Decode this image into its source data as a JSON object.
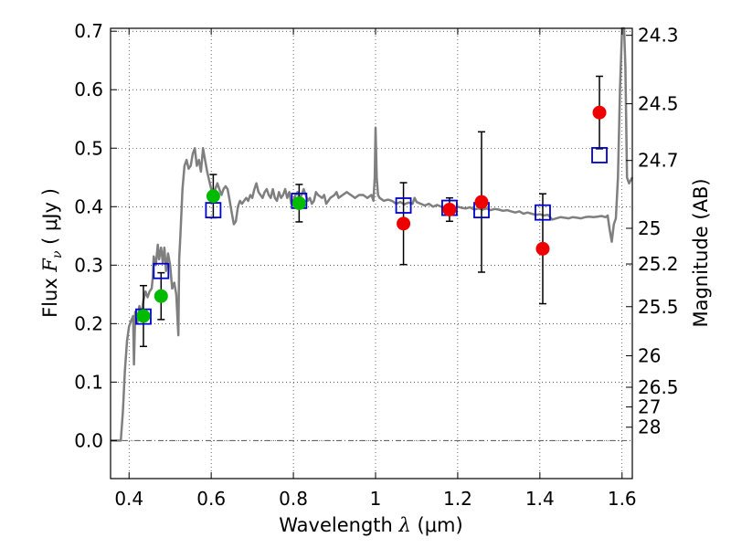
{
  "chart_data": {
    "type": "scatter",
    "xlabel_prefix": "Wavelength ",
    "xlabel_symbol": "λ",
    "xlabel_unit": " (μm)",
    "ylabel_prefix": "Flux ",
    "ylabel_symbol": "F",
    "ylabel_subscript": "ν",
    "ylabel_unit": " ( μJy )",
    "y2label": "Magnitude (AB)",
    "xlim": [
      0.355,
      1.625
    ],
    "ylim": [
      -0.065,
      0.705
    ],
    "xticks": [
      0.4,
      0.6,
      0.8,
      1.0,
      1.2,
      1.4,
      1.6
    ],
    "xtick_labels": [
      "0.4",
      "0.6",
      "0.8",
      "1",
      "1.2",
      "1.4",
      "1.6"
    ],
    "yticks": [
      0.0,
      0.1,
      0.2,
      0.3,
      0.4,
      0.5,
      0.6,
      0.7
    ],
    "ytick_labels": [
      "0.0",
      "0.1",
      "0.2",
      "0.3",
      "0.4",
      "0.5",
      "0.6",
      "0.7"
    ],
    "mag_ticks": [
      {
        "label": "24.3",
        "flux": 0.693
      },
      {
        "label": "24.5",
        "flux": 0.576
      },
      {
        "label": "24.7",
        "flux": 0.479
      },
      {
        "label": "25",
        "flux": 0.363
      },
      {
        "label": "25.2",
        "flux": 0.302
      },
      {
        "label": "25.5",
        "flux": 0.229
      },
      {
        "label": "26",
        "flux": 0.145
      },
      {
        "label": "26.5",
        "flux": 0.0912
      },
      {
        "label": "27",
        "flux": 0.0575
      },
      {
        "label": "28",
        "flux": 0.0229
      }
    ],
    "grid": true,
    "colors": {
      "template": "#7f7f7f",
      "green": "#00bb00",
      "red": "#ee0000",
      "model_box": "#0000cc",
      "errorbar": "#000000",
      "zero_line": "#555555"
    },
    "series": [
      {
        "name": "template_sed",
        "kind": "line",
        "points": [
          [
            0.355,
            0.0
          ],
          [
            0.38,
            0.0
          ],
          [
            0.385,
            0.05
          ],
          [
            0.39,
            0.12
          ],
          [
            0.395,
            0.17
          ],
          [
            0.4,
            0.195
          ],
          [
            0.405,
            0.205
          ],
          [
            0.41,
            0.213
          ],
          [
            0.412,
            0.13
          ],
          [
            0.415,
            0.22
          ],
          [
            0.42,
            0.2
          ],
          [
            0.425,
            0.23
          ],
          [
            0.43,
            0.215
          ],
          [
            0.435,
            0.24
          ],
          [
            0.44,
            0.255
          ],
          [
            0.445,
            0.245
          ],
          [
            0.45,
            0.255
          ],
          [
            0.455,
            0.26
          ],
          [
            0.458,
            0.28
          ],
          [
            0.46,
            0.315
          ],
          [
            0.465,
            0.3
          ],
          [
            0.47,
            0.335
          ],
          [
            0.473,
            0.31
          ],
          [
            0.478,
            0.33
          ],
          [
            0.482,
            0.305
          ],
          [
            0.486,
            0.33
          ],
          [
            0.49,
            0.29
          ],
          [
            0.495,
            0.32
          ],
          [
            0.5,
            0.3
          ],
          [
            0.505,
            0.26
          ],
          [
            0.51,
            0.27
          ],
          [
            0.515,
            0.25
          ],
          [
            0.52,
            0.18
          ],
          [
            0.522,
            0.31
          ],
          [
            0.525,
            0.35
          ],
          [
            0.53,
            0.43
          ],
          [
            0.535,
            0.47
          ],
          [
            0.54,
            0.48
          ],
          [
            0.545,
            0.465
          ],
          [
            0.55,
            0.47
          ],
          [
            0.555,
            0.49
          ],
          [
            0.56,
            0.5
          ],
          [
            0.565,
            0.47
          ],
          [
            0.57,
            0.48
          ],
          [
            0.575,
            0.46
          ],
          [
            0.58,
            0.5
          ],
          [
            0.585,
            0.48
          ],
          [
            0.59,
            0.46
          ],
          [
            0.595,
            0.445
          ],
          [
            0.6,
            0.43
          ],
          [
            0.605,
            0.41
          ],
          [
            0.61,
            0.43
          ],
          [
            0.615,
            0.44
          ],
          [
            0.62,
            0.43
          ],
          [
            0.625,
            0.42
          ],
          [
            0.63,
            0.43
          ],
          [
            0.635,
            0.435
          ],
          [
            0.64,
            0.43
          ],
          [
            0.645,
            0.41
          ],
          [
            0.65,
            0.39
          ],
          [
            0.655,
            0.37
          ],
          [
            0.66,
            0.375
          ],
          [
            0.665,
            0.4
          ],
          [
            0.67,
            0.41
          ],
          [
            0.675,
            0.405
          ],
          [
            0.68,
            0.41
          ],
          [
            0.685,
            0.415
          ],
          [
            0.69,
            0.41
          ],
          [
            0.695,
            0.42
          ],
          [
            0.7,
            0.415
          ],
          [
            0.705,
            0.43
          ],
          [
            0.71,
            0.44
          ],
          [
            0.715,
            0.425
          ],
          [
            0.72,
            0.42
          ],
          [
            0.725,
            0.415
          ],
          [
            0.73,
            0.425
          ],
          [
            0.735,
            0.43
          ],
          [
            0.74,
            0.42
          ],
          [
            0.745,
            0.415
          ],
          [
            0.75,
            0.43
          ],
          [
            0.755,
            0.415
          ],
          [
            0.76,
            0.41
          ],
          [
            0.765,
            0.425
          ],
          [
            0.77,
            0.415
          ],
          [
            0.775,
            0.42
          ],
          [
            0.78,
            0.43
          ],
          [
            0.785,
            0.415
          ],
          [
            0.79,
            0.425
          ],
          [
            0.795,
            0.405
          ],
          [
            0.8,
            0.41
          ],
          [
            0.805,
            0.42
          ],
          [
            0.81,
            0.425
          ],
          [
            0.815,
            0.415
          ],
          [
            0.82,
            0.42
          ],
          [
            0.825,
            0.43
          ],
          [
            0.83,
            0.42
          ],
          [
            0.835,
            0.41
          ],
          [
            0.84,
            0.415
          ],
          [
            0.845,
            0.405
          ],
          [
            0.85,
            0.41
          ],
          [
            0.855,
            0.425
          ],
          [
            0.86,
            0.42
          ],
          [
            0.87,
            0.415
          ],
          [
            0.875,
            0.42
          ],
          [
            0.88,
            0.405
          ],
          [
            0.885,
            0.41
          ],
          [
            0.89,
            0.415
          ],
          [
            0.9,
            0.42
          ],
          [
            0.905,
            0.425
          ],
          [
            0.91,
            0.415
          ],
          [
            0.92,
            0.42
          ],
          [
            0.93,
            0.425
          ],
          [
            0.94,
            0.42
          ],
          [
            0.95,
            0.415
          ],
          [
            0.96,
            0.42
          ],
          [
            0.97,
            0.42
          ],
          [
            0.98,
            0.415
          ],
          [
            0.99,
            0.42
          ],
          [
            0.995,
            0.41
          ],
          [
            0.998,
            0.45
          ],
          [
            1.0,
            0.535
          ],
          [
            1.003,
            0.45
          ],
          [
            1.006,
            0.42
          ],
          [
            1.01,
            0.415
          ],
          [
            1.02,
            0.41
          ],
          [
            1.03,
            0.412
          ],
          [
            1.04,
            0.41
          ],
          [
            1.05,
            0.405
          ],
          [
            1.06,
            0.408
          ],
          [
            1.07,
            0.404
          ],
          [
            1.08,
            0.407
          ],
          [
            1.09,
            0.405
          ],
          [
            1.095,
            0.415
          ],
          [
            1.1,
            0.408
          ],
          [
            1.11,
            0.405
          ],
          [
            1.12,
            0.402
          ],
          [
            1.13,
            0.405
          ],
          [
            1.14,
            0.4
          ],
          [
            1.15,
            0.403
          ],
          [
            1.16,
            0.4
          ],
          [
            1.17,
            0.398
          ],
          [
            1.18,
            0.4
          ],
          [
            1.19,
            0.397
          ],
          [
            1.2,
            0.4
          ],
          [
            1.21,
            0.398
          ],
          [
            1.22,
            0.397
          ],
          [
            1.23,
            0.399
          ],
          [
            1.24,
            0.395
          ],
          [
            1.25,
            0.397
          ],
          [
            1.26,
            0.395
          ],
          [
            1.27,
            0.397
          ],
          [
            1.28,
            0.394
          ],
          [
            1.29,
            0.396
          ],
          [
            1.3,
            0.395
          ],
          [
            1.31,
            0.393
          ],
          [
            1.32,
            0.394
          ],
          [
            1.33,
            0.392
          ],
          [
            1.34,
            0.39
          ],
          [
            1.35,
            0.392
          ],
          [
            1.36,
            0.388
          ],
          [
            1.37,
            0.39
          ],
          [
            1.38,
            0.388
          ],
          [
            1.39,
            0.386
          ],
          [
            1.4,
            0.387
          ],
          [
            1.41,
            0.385
          ],
          [
            1.42,
            0.386
          ],
          [
            1.43,
            0.378
          ],
          [
            1.44,
            0.38
          ],
          [
            1.45,
            0.382
          ],
          [
            1.46,
            0.381
          ],
          [
            1.47,
            0.38
          ],
          [
            1.48,
            0.382
          ],
          [
            1.49,
            0.381
          ],
          [
            1.5,
            0.38
          ],
          [
            1.51,
            0.382
          ],
          [
            1.52,
            0.383
          ],
          [
            1.53,
            0.382
          ],
          [
            1.54,
            0.383
          ],
          [
            1.55,
            0.384
          ],
          [
            1.56,
            0.382
          ],
          [
            1.565,
            0.385
          ],
          [
            1.57,
            0.36
          ],
          [
            1.575,
            0.34
          ],
          [
            1.58,
            0.37
          ],
          [
            1.585,
            0.38
          ],
          [
            1.59,
            0.45
          ],
          [
            1.595,
            0.6
          ],
          [
            1.6,
            0.72
          ],
          [
            1.605,
            0.72
          ],
          [
            1.608,
            0.64
          ],
          [
            1.612,
            0.45
          ],
          [
            1.617,
            0.44
          ],
          [
            1.625,
            0.45
          ]
        ]
      },
      {
        "name": "green_photometry",
        "kind": "circle",
        "points": [
          {
            "x": 0.435,
            "y": 0.213,
            "err": 0.052
          },
          {
            "x": 0.478,
            "y": 0.247,
            "err": 0.04
          },
          {
            "x": 0.605,
            "y": 0.418,
            "err": 0.037
          },
          {
            "x": 0.814,
            "y": 0.406,
            "err": 0.032
          }
        ]
      },
      {
        "name": "red_photometry",
        "kind": "circle",
        "points": [
          {
            "x": 1.068,
            "y": 0.371,
            "err": 0.07
          },
          {
            "x": 1.18,
            "y": 0.395,
            "err": 0.02
          },
          {
            "x": 1.258,
            "y": 0.408,
            "err": 0.12
          },
          {
            "x": 1.407,
            "y": 0.328,
            "err": 0.094
          },
          {
            "x": 1.545,
            "y": 0.561,
            "err": 0.062
          }
        ]
      },
      {
        "name": "model_bandflux",
        "kind": "square",
        "points": [
          {
            "x": 0.435,
            "y": 0.212
          },
          {
            "x": 0.478,
            "y": 0.29
          },
          {
            "x": 0.605,
            "y": 0.394
          },
          {
            "x": 0.814,
            "y": 0.41
          },
          {
            "x": 1.068,
            "y": 0.402
          },
          {
            "x": 1.18,
            "y": 0.398
          },
          {
            "x": 1.258,
            "y": 0.394
          },
          {
            "x": 1.407,
            "y": 0.39
          },
          {
            "x": 1.545,
            "y": 0.488
          }
        ]
      }
    ]
  }
}
